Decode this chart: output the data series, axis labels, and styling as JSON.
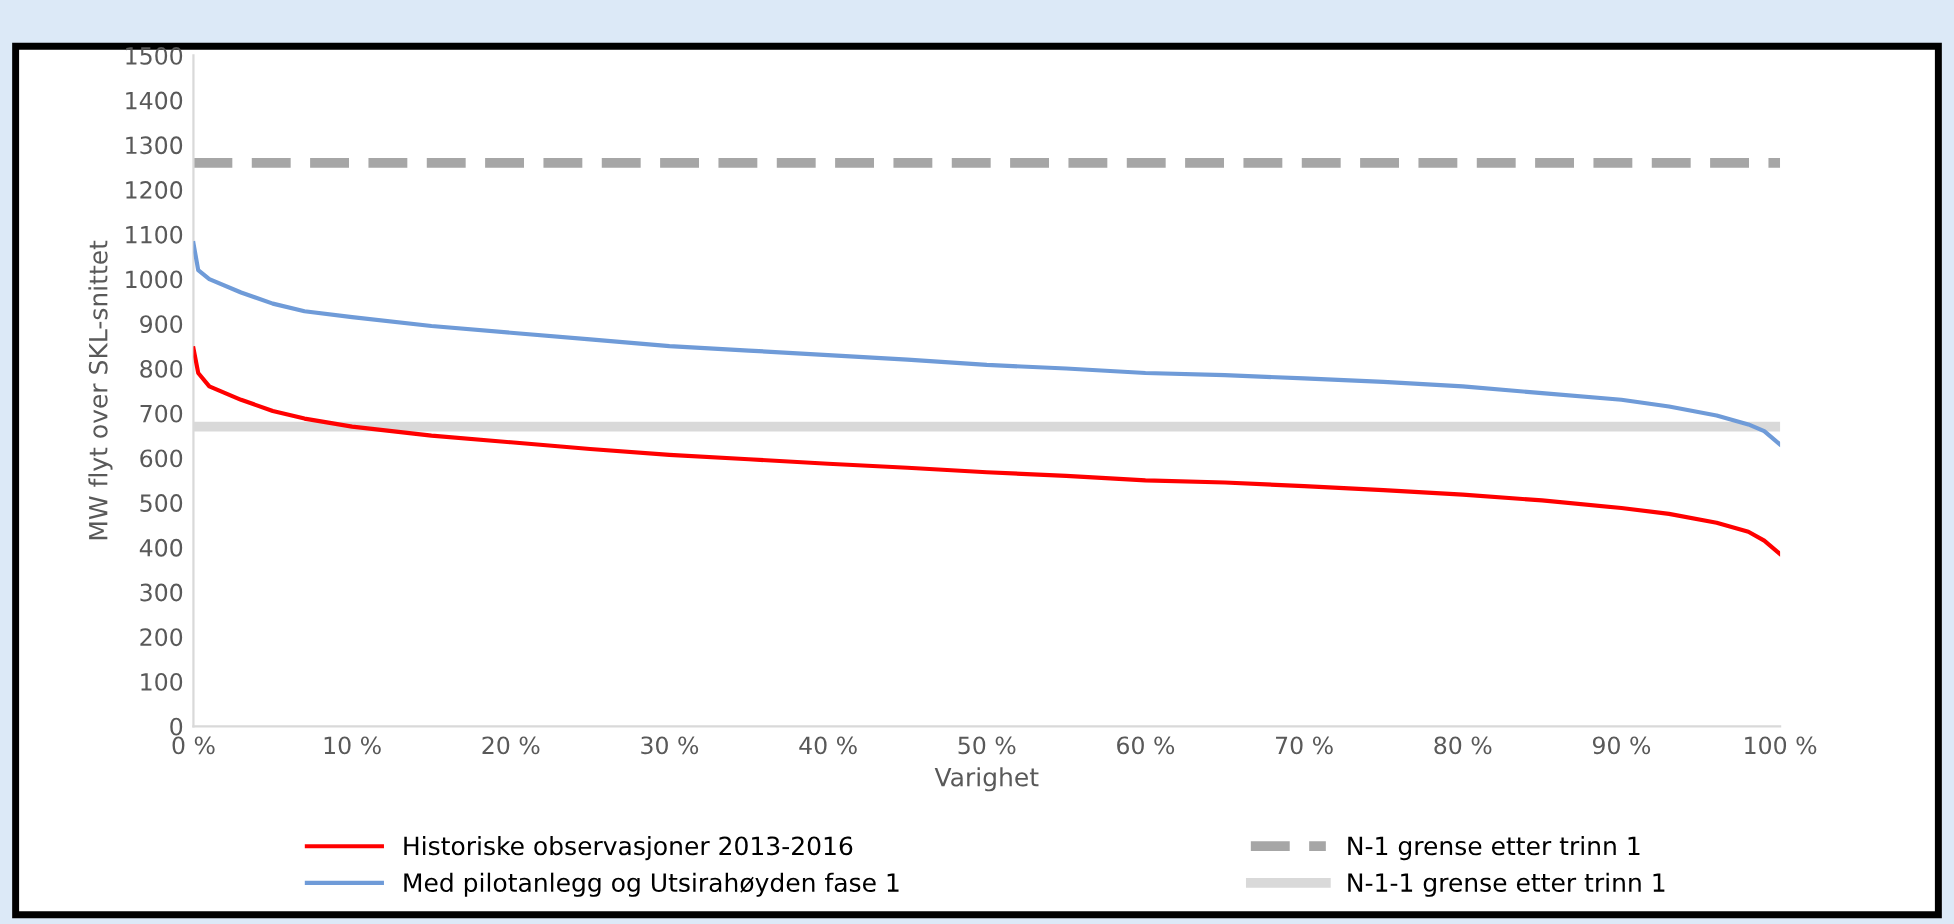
{
  "chart_data": {
    "type": "line",
    "xlabel": "Varighet",
    "ylabel": "MW flyt over SKL-snittet",
    "xlim": [
      0,
      100
    ],
    "ylim": [
      0,
      1500
    ],
    "xticks": [
      {
        "value": 0,
        "label": "0 %"
      },
      {
        "value": 10,
        "label": "10 %"
      },
      {
        "value": 20,
        "label": "20 %"
      },
      {
        "value": 30,
        "label": "30 %"
      },
      {
        "value": 40,
        "label": "40 %"
      },
      {
        "value": 50,
        "label": "50 %"
      },
      {
        "value": 60,
        "label": "60 %"
      },
      {
        "value": 70,
        "label": "70 %"
      },
      {
        "value": 80,
        "label": "80 %"
      },
      {
        "value": 90,
        "label": "90 %"
      },
      {
        "value": 100,
        "label": "100 %"
      }
    ],
    "yticks": [
      0,
      100,
      200,
      300,
      400,
      500,
      600,
      700,
      800,
      900,
      1000,
      1100,
      1200,
      1300,
      1400,
      1500
    ],
    "grid": false,
    "legend": "bottom",
    "marker": "none",
    "series": [
      {
        "name": "Historiske observasjoner 2013-2016",
        "color": "#ff0000",
        "line_style": "solid",
        "x": [
          0,
          0.3,
          1,
          3,
          5,
          7,
          10,
          15,
          20,
          25,
          30,
          35,
          40,
          45,
          50,
          55,
          60,
          65,
          70,
          75,
          80,
          85,
          90,
          93,
          96,
          98,
          99,
          100
        ],
        "values": [
          845,
          790,
          760,
          730,
          705,
          688,
          670,
          650,
          635,
          620,
          607,
          597,
          587,
          578,
          568,
          560,
          550,
          545,
          537,
          528,
          518,
          505,
          488,
          475,
          455,
          435,
          415,
          385
        ]
      },
      {
        "name": "Med pilotanlegg og Utsirahøyden fase 1",
        "color": "#6f9bd8",
        "line_style": "solid",
        "x": [
          0,
          0.3,
          1,
          3,
          5,
          7,
          10,
          15,
          20,
          25,
          30,
          35,
          40,
          45,
          50,
          55,
          60,
          65,
          70,
          75,
          80,
          85,
          90,
          93,
          96,
          98,
          99,
          100
        ],
        "values": [
          1080,
          1020,
          1000,
          970,
          945,
          928,
          915,
          895,
          880,
          865,
          850,
          840,
          830,
          820,
          808,
          800,
          790,
          785,
          778,
          770,
          760,
          745,
          730,
          715,
          695,
          675,
          660,
          630
        ]
      },
      {
        "name": "N-1 grense etter trinn 1",
        "color": "#a6a6a6",
        "line_style": "dashed",
        "x": [
          0,
          100
        ],
        "values": [
          1260,
          1260
        ]
      },
      {
        "name": "N-1-1 grense etter trinn 1",
        "color": "#d9d9d9",
        "line_style": "solid",
        "x": [
          0,
          100
        ],
        "values": [
          670,
          670
        ]
      }
    ]
  }
}
